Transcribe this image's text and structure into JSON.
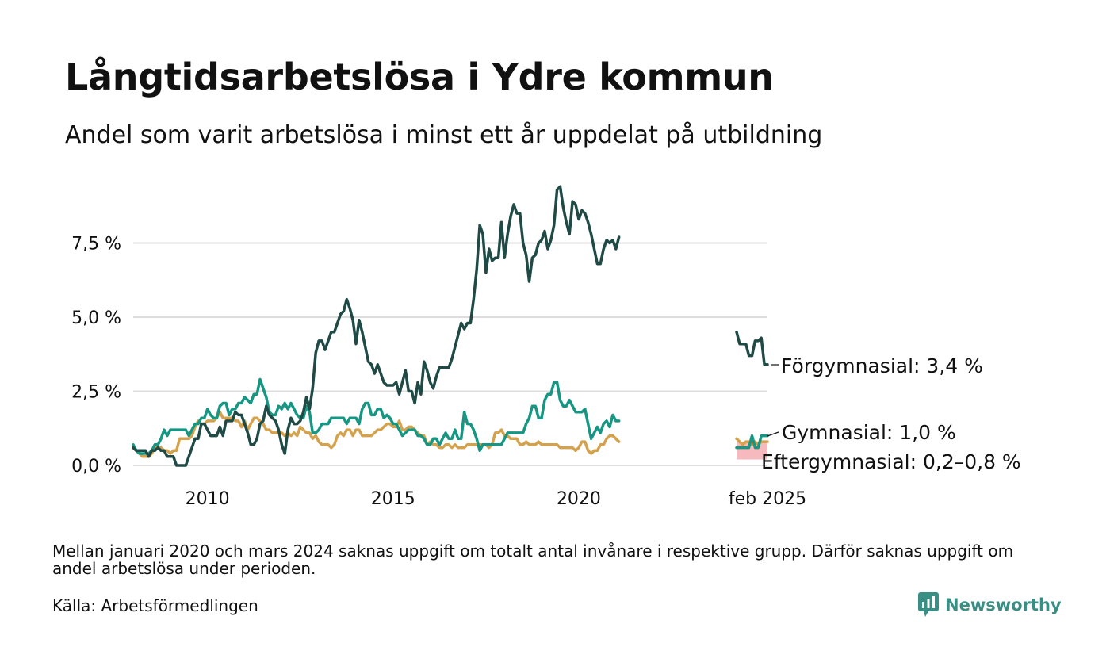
{
  "header": {
    "title": "Långtidsarbetslösa i Ydre kommun",
    "subtitle": "Andel som varit arbetslösa i minst ett år uppdelat på utbildning"
  },
  "footer": {
    "note": "Mellan januari 2020 och mars 2024 saknas uppgift om totalt antal invånare i respektive grupp. Därför saknas uppgift om andel arbetslösa under perioden.",
    "source": "Källa: Arbetsförmedlingen",
    "brand": "Newsworthy"
  },
  "colors": {
    "forgymnasial": "#1f4a45",
    "gymnasial": "#169683",
    "eftergymnasial": "#d4a24c",
    "eftergymnasial_range": "#f6b9bd",
    "grid": "#dddddd",
    "brand": "#3a8f85"
  },
  "chart_data": {
    "type": "line",
    "title": "Långtidsarbetslösa i Ydre kommun",
    "subtitle": "Andel som varit arbetslösa i minst ett år uppdelat på utbildning",
    "xlabel": "",
    "ylabel": "",
    "y_ticks": [
      "0,0 %",
      "2,5 %",
      "5,0 %",
      "7,5 %"
    ],
    "y_tick_values": [
      0,
      2.5,
      5.0,
      7.5
    ],
    "x_ticks": [
      "2010",
      "2015",
      "2020",
      "feb 2025"
    ],
    "x_tick_values": [
      "2010-01",
      "2015-01",
      "2020-01",
      "2025-02"
    ],
    "ylim": [
      0,
      9.5
    ],
    "grid": true,
    "legend": "end-labels",
    "end_labels": {
      "forgymnasial": "Förgymnasial: 3,4 %",
      "gymnasial": "Gymnasial: 1,0 %",
      "eftergymnasial": "Eftergymnasial: 0,2–0,8 %"
    },
    "series": [
      {
        "name": "Förgymnasial",
        "segments": [
          {
            "start": "2008-01",
            "values": [
              0.6,
              0.5,
              0.5,
              0.5,
              0.5,
              0.3,
              0.5,
              0.5,
              0.6,
              0.5,
              0.5,
              0.3,
              0.3,
              0.3,
              0.0,
              0.0,
              0.0,
              0.0,
              0.3,
              0.6,
              0.9,
              0.9,
              1.4,
              1.4,
              1.2,
              1.0,
              1.0,
              1.0,
              1.3,
              1.0,
              1.5,
              1.5,
              1.5,
              1.8,
              1.7,
              1.7,
              1.4,
              1.1,
              0.7,
              0.7,
              0.9,
              1.4,
              1.5,
              2.0,
              1.7,
              1.6,
              1.5,
              1.2,
              0.7,
              0.4,
              1.2,
              1.6,
              1.4,
              1.4,
              1.5,
              1.8,
              2.3,
              1.9,
              2.6,
              3.8,
              4.2,
              4.2,
              3.9,
              4.2,
              4.5,
              4.5,
              4.8,
              5.1,
              5.2,
              5.6,
              5.3,
              4.9,
              4.1,
              4.9,
              4.5,
              4.0,
              3.5,
              3.4,
              3.1,
              3.4,
              3.1,
              2.8,
              2.7,
              2.7,
              2.7,
              2.8,
              2.4,
              2.8,
              3.2,
              2.5,
              2.5,
              2.1,
              2.8,
              2.4,
              3.5,
              3.2,
              2.8,
              2.6,
              3.0,
              3.3,
              3.3,
              3.3,
              3.3,
              3.6,
              4.0,
              4.4,
              4.8,
              4.6,
              4.8,
              4.8,
              5.6,
              6.6,
              8.1,
              7.8,
              6.5,
              7.3,
              6.9,
              7.0,
              7.0,
              8.2,
              7.0,
              7.8,
              8.4,
              8.8,
              8.5,
              8.5,
              7.5,
              7.1,
              6.2,
              7.0,
              7.1,
              7.5,
              7.6,
              7.9,
              7.3,
              7.6,
              8.1,
              9.3,
              9.4,
              8.7,
              8.2,
              7.8,
              8.9,
              8.8,
              8.3,
              8.6,
              8.5,
              8.2,
              7.8,
              7.3,
              6.8,
              6.8,
              7.3,
              7.6,
              7.5,
              7.6,
              7.3,
              7.7
            ]
          },
          {
            "start": "2024-04",
            "values": [
              4.5,
              4.1,
              4.1,
              4.1,
              3.7,
              3.7,
              4.2,
              4.2,
              4.3,
              3.4,
              3.4
            ]
          }
        ]
      },
      {
        "name": "Gymnasial",
        "segments": [
          {
            "start": "2008-01",
            "values": [
              0.7,
              0.5,
              0.4,
              0.4,
              0.4,
              0.4,
              0.5,
              0.7,
              0.7,
              0.9,
              1.2,
              1.0,
              1.2,
              1.2,
              1.2,
              1.2,
              1.2,
              1.2,
              1.0,
              1.2,
              1.4,
              1.4,
              1.6,
              1.6,
              1.9,
              1.7,
              1.6,
              1.6,
              2.0,
              2.1,
              2.1,
              1.7,
              1.9,
              1.9,
              2.1,
              2.1,
              2.3,
              2.2,
              2.1,
              2.4,
              2.4,
              2.9,
              2.6,
              2.3,
              1.8,
              1.7,
              1.7,
              2.0,
              1.9,
              2.1,
              1.9,
              2.1,
              1.9,
              1.7,
              1.6,
              1.6,
              2.0,
              1.8,
              1.1,
              1.1,
              1.2,
              1.4,
              1.4,
              1.4,
              1.6,
              1.6,
              1.6,
              1.6,
              1.6,
              1.4,
              1.6,
              1.6,
              1.6,
              1.4,
              1.9,
              2.1,
              2.1,
              1.7,
              1.7,
              1.9,
              1.9,
              1.6,
              1.7,
              1.6,
              1.4,
              1.4,
              1.2,
              1.0,
              1.1,
              1.2,
              1.2,
              1.2,
              1.0,
              1.0,
              0.9,
              0.7,
              0.7,
              0.9,
              0.9,
              0.7,
              0.9,
              1.1,
              0.9,
              0.9,
              1.2,
              0.9,
              0.9,
              1.8,
              1.4,
              1.4,
              1.2,
              0.9,
              0.5,
              0.7,
              0.7,
              0.7,
              0.7,
              0.7,
              0.7,
              0.7,
              0.9,
              1.1,
              1.1,
              1.1,
              1.1,
              1.1,
              1.1,
              1.4,
              1.6,
              2.0,
              2.0,
              1.6,
              1.6,
              2.2,
              2.4,
              2.4,
              2.8,
              2.8,
              2.2,
              2.0,
              2.0,
              2.2,
              2.0,
              1.8,
              1.8,
              1.8,
              1.9,
              1.4,
              0.9,
              1.1,
              1.3,
              1.1,
              1.4,
              1.5,
              1.3,
              1.7,
              1.5,
              1.5
            ]
          },
          {
            "start": "2024-04",
            "values": [
              0.6,
              0.6,
              0.6,
              0.6,
              0.6,
              1.0,
              0.6,
              0.6,
              1.0,
              1.0,
              1.0
            ]
          }
        ]
      },
      {
        "name": "Eftergymnasial",
        "segments": [
          {
            "start": "2008-01",
            "values": [
              0.6,
              0.5,
              0.4,
              0.3,
              0.3,
              0.3,
              0.4,
              0.6,
              0.6,
              0.6,
              0.5,
              0.5,
              0.4,
              0.5,
              0.5,
              0.9,
              0.9,
              0.9,
              0.9,
              1.0,
              1.3,
              1.5,
              1.4,
              1.4,
              1.5,
              1.5,
              1.5,
              1.6,
              1.8,
              1.6,
              1.6,
              1.6,
              1.6,
              1.5,
              1.5,
              1.3,
              1.5,
              1.2,
              1.4,
              1.6,
              1.6,
              1.5,
              1.4,
              1.2,
              1.2,
              1.1,
              1.1,
              1.1,
              1.1,
              1.0,
              1.1,
              1.0,
              1.1,
              1.0,
              1.3,
              1.2,
              1.1,
              1.1,
              0.9,
              1.0,
              0.8,
              0.7,
              0.7,
              0.7,
              0.6,
              0.7,
              1.0,
              1.1,
              1.0,
              1.2,
              1.2,
              1.0,
              1.2,
              1.2,
              1.0,
              1.0,
              1.0,
              1.0,
              1.1,
              1.2,
              1.2,
              1.3,
              1.4,
              1.4,
              1.3,
              1.3,
              1.5,
              1.2,
              1.2,
              1.3,
              1.3,
              1.2,
              1.1,
              1.0,
              1.0,
              0.7,
              0.8,
              0.7,
              0.7,
              0.6,
              0.6,
              0.7,
              0.7,
              0.6,
              0.7,
              0.6,
              0.6,
              0.6,
              0.7,
              0.7,
              0.7,
              0.7,
              0.7,
              0.7,
              0.7,
              0.6,
              0.7,
              1.1,
              1.1,
              1.2,
              1.0,
              1.0,
              0.9,
              0.9,
              0.9,
              0.7,
              0.7,
              0.8,
              0.7,
              0.7,
              0.7,
              0.8,
              0.7,
              0.7,
              0.7,
              0.7,
              0.7,
              0.7,
              0.6,
              0.6,
              0.6,
              0.6,
              0.6,
              0.5,
              0.6,
              0.8,
              0.8,
              0.5,
              0.4,
              0.5,
              0.5,
              0.7,
              0.7,
              0.9,
              1.0,
              1.0,
              0.9,
              0.8
            ]
          },
          {
            "start": "2024-04",
            "values": [
              0.9,
              0.8,
              0.7,
              0.8,
              0.8,
              0.7,
              0.8,
              0.7,
              0.8,
              0.8,
              0.8
            ]
          }
        ],
        "range_band": {
          "start": "2024-04",
          "end": "2025-02",
          "low": 0.2,
          "high": 0.8
        }
      }
    ]
  }
}
